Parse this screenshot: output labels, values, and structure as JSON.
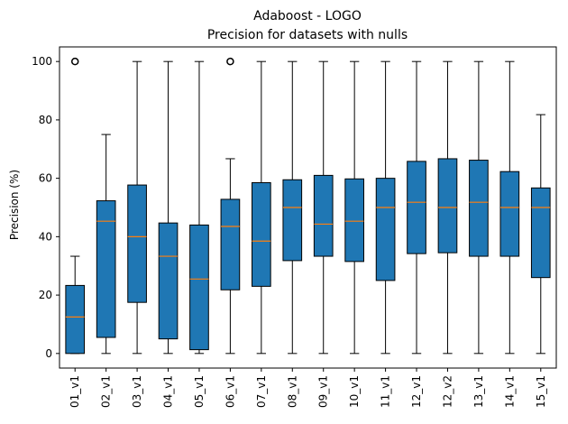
{
  "chart_data": {
    "type": "box",
    "title": "Adaboost - LOGO",
    "subtitle": "Precision for datasets with nulls",
    "xlabel": "",
    "ylabel": "Precision (%)",
    "ylim": [
      -5,
      105
    ],
    "yticks": [
      0,
      20,
      40,
      60,
      80,
      100
    ],
    "grid": false,
    "colors": {
      "box_fill": "#1f77b4",
      "median": "#ff7f0e",
      "line": "#000000"
    },
    "categories": [
      "01_v1",
      "02_v1",
      "03_v1",
      "04_v1",
      "05_v1",
      "06_v1",
      "07_v1",
      "08_v1",
      "09_v1",
      "10_v1",
      "11_v1",
      "12_v1",
      "12_v2",
      "13_v1",
      "14_v1",
      "15_v1"
    ],
    "boxes": [
      {
        "whislo": 0,
        "q1": 0,
        "median": 12.5,
        "q3": 23.3,
        "whishi": 33.3,
        "fliers": [
          100
        ]
      },
      {
        "whislo": 0,
        "q1": 5.5,
        "median": 45.3,
        "q3": 52.3,
        "whishi": 75,
        "fliers": []
      },
      {
        "whislo": 0,
        "q1": 17.5,
        "median": 40,
        "q3": 57.7,
        "whishi": 100,
        "fliers": []
      },
      {
        "whislo": 0,
        "q1": 5,
        "median": 33.3,
        "q3": 44.7,
        "whishi": 100,
        "fliers": []
      },
      {
        "whislo": 0,
        "q1": 1.3,
        "median": 25.5,
        "q3": 44,
        "whishi": 100,
        "fliers": []
      },
      {
        "whislo": 0,
        "q1": 21.8,
        "median": 43.5,
        "q3": 52.8,
        "whishi": 66.7,
        "fliers": [
          100
        ]
      },
      {
        "whislo": 0,
        "q1": 23,
        "median": 38.5,
        "q3": 58.5,
        "whishi": 100,
        "fliers": []
      },
      {
        "whislo": 0,
        "q1": 31.8,
        "median": 50,
        "q3": 59.5,
        "whishi": 100,
        "fliers": []
      },
      {
        "whislo": 0,
        "q1": 33.3,
        "median": 44.3,
        "q3": 61,
        "whishi": 100,
        "fliers": []
      },
      {
        "whislo": 0,
        "q1": 31.5,
        "median": 45.3,
        "q3": 59.8,
        "whishi": 100,
        "fliers": []
      },
      {
        "whislo": 0,
        "q1": 25,
        "median": 50,
        "q3": 60,
        "whishi": 100,
        "fliers": []
      },
      {
        "whislo": 0,
        "q1": 34.2,
        "median": 51.8,
        "q3": 65.8,
        "whishi": 100,
        "fliers": []
      },
      {
        "whislo": 0,
        "q1": 34.5,
        "median": 50,
        "q3": 66.7,
        "whishi": 100,
        "fliers": []
      },
      {
        "whislo": 0,
        "q1": 33.3,
        "median": 51.8,
        "q3": 66.2,
        "whishi": 100,
        "fliers": []
      },
      {
        "whislo": 0,
        "q1": 33.3,
        "median": 50,
        "q3": 62.3,
        "whishi": 100,
        "fliers": []
      },
      {
        "whislo": 0,
        "q1": 26,
        "median": 50,
        "q3": 56.7,
        "whishi": 81.8,
        "fliers": []
      }
    ]
  }
}
